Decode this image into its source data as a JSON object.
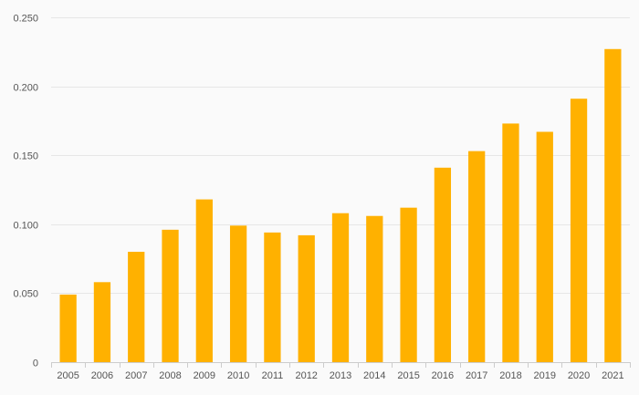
{
  "chart_data": {
    "type": "bar",
    "title": "",
    "xlabel": "",
    "ylabel": "",
    "categories": [
      "2005",
      "2006",
      "2007",
      "2008",
      "2009",
      "2010",
      "2011",
      "2012",
      "2013",
      "2014",
      "2015",
      "2016",
      "2017",
      "2018",
      "2019",
      "2020",
      "2021"
    ],
    "values": [
      0.049,
      0.058,
      0.08,
      0.096,
      0.118,
      0.099,
      0.094,
      0.092,
      0.108,
      0.106,
      0.112,
      0.141,
      0.153,
      0.173,
      0.167,
      0.191,
      0.227
    ],
    "ylim": [
      0,
      0.25
    ],
    "yticks": [
      0,
      0.05,
      0.1,
      0.15,
      0.2,
      0.25
    ],
    "ytick_labels": [
      "0",
      "0.050",
      "0.100",
      "0.150",
      "0.200",
      "0.250"
    ],
    "grid": "horizontal",
    "legend": "none",
    "bar_color": "#ffb100"
  }
}
